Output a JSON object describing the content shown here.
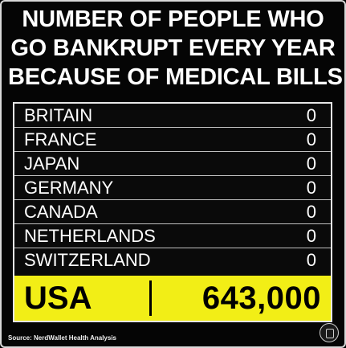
{
  "title": {
    "lines": [
      "NUMBER OF PEOPLE WHO",
      "GO BANKRUPT EVERY YEAR",
      "BECAUSE OF MEDICAL BILLS"
    ]
  },
  "table": {
    "rows": [
      {
        "country": "BRITAIN",
        "value": "0"
      },
      {
        "country": "FRANCE",
        "value": "0"
      },
      {
        "country": "JAPAN",
        "value": "0"
      },
      {
        "country": "GERMANY",
        "value": "0"
      },
      {
        "country": "CANADA",
        "value": "0"
      },
      {
        "country": "NETHERLANDS",
        "value": "0"
      },
      {
        "country": "SWITZERLAND",
        "value": "0"
      }
    ],
    "highlight": {
      "country": "USA",
      "value": "643,000"
    }
  },
  "source": "Source: NerdWallet Health Analysis",
  "colors": {
    "background": "#000000",
    "highlight": "#f2ee16",
    "text": "#ffffff"
  },
  "icons": {
    "corner_badge": "watermark-badge-icon"
  }
}
